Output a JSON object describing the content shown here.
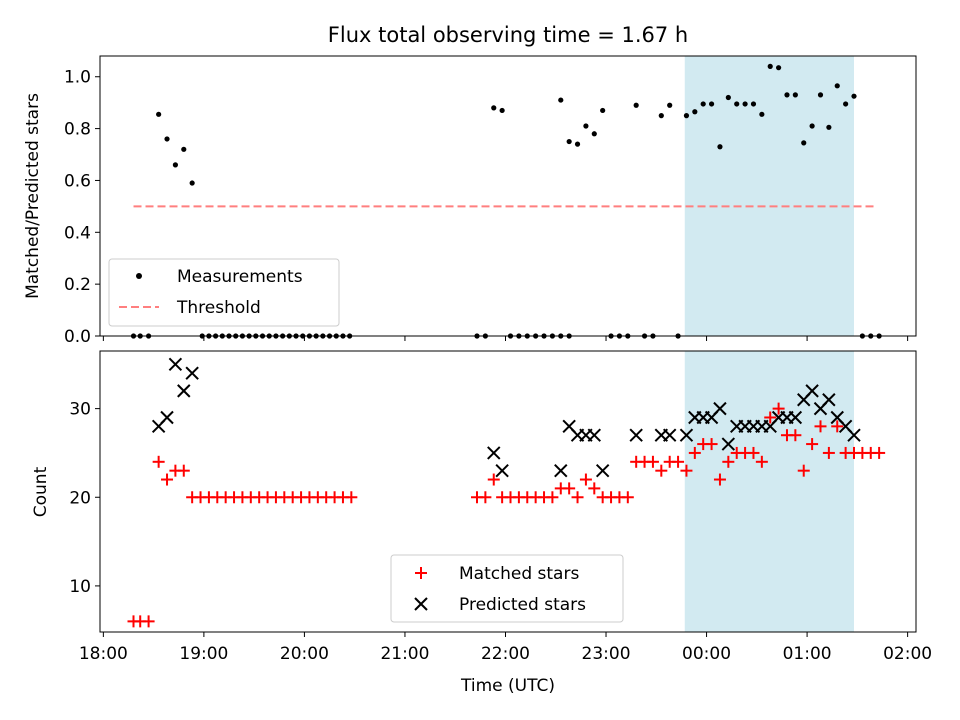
{
  "title": "Flux total observing time = 1.67 h",
  "colors": {
    "measurements": "#000000",
    "threshold": "#ff7f7f",
    "matched": "#ff0000",
    "predicted": "#000000",
    "window": "#add8e6"
  },
  "chart_data": [
    {
      "type": "scatter",
      "ylabel": "Matched/Predicted stars",
      "ylim": [
        0,
        1.08
      ],
      "yticks": [
        0.0,
        0.2,
        0.4,
        0.6,
        0.8,
        1.0
      ],
      "ytick_labels": [
        "0.0",
        "0.2",
        "0.4",
        "0.6",
        "0.8",
        "1.0"
      ],
      "xlim": [
        "17:58",
        "02:05"
      ],
      "shaded_window": [
        "23:47",
        "01:28"
      ],
      "legend": {
        "placement": "lower-left",
        "entries": [
          "Measurements",
          "Threshold"
        ]
      },
      "threshold": {
        "name": "Threshold",
        "y": 0.5,
        "x": [
          "18:18",
          "01:42"
        ],
        "style": "dashed"
      },
      "series": [
        {
          "name": "Measurements",
          "marker": "dot",
          "points": [
            [
              "18:18",
              0.0
            ],
            [
              "18:22",
              0.0
            ],
            [
              "18:27",
              0.0
            ],
            [
              "18:33",
              0.855
            ],
            [
              "18:38",
              0.76
            ],
            [
              "18:43",
              0.66
            ],
            [
              "18:48",
              0.72
            ],
            [
              "18:53",
              0.59
            ],
            [
              "18:59",
              0.0
            ],
            [
              "19:03",
              0.0
            ],
            [
              "19:07",
              0.0
            ],
            [
              "19:11",
              0.0
            ],
            [
              "19:15",
              0.0
            ],
            [
              "19:19",
              0.0
            ],
            [
              "19:23",
              0.0
            ],
            [
              "19:27",
              0.0
            ],
            [
              "19:31",
              0.0
            ],
            [
              "19:35",
              0.0
            ],
            [
              "19:39",
              0.0
            ],
            [
              "19:43",
              0.0
            ],
            [
              "19:47",
              0.0
            ],
            [
              "19:51",
              0.0
            ],
            [
              "19:55",
              0.0
            ],
            [
              "19:59",
              0.0
            ],
            [
              "20:03",
              0.0
            ],
            [
              "20:07",
              0.0
            ],
            [
              "20:11",
              0.0
            ],
            [
              "20:15",
              0.0
            ],
            [
              "20:19",
              0.0
            ],
            [
              "20:23",
              0.0
            ],
            [
              "20:27",
              0.0
            ],
            [
              "21:43",
              0.0
            ],
            [
              "21:48",
              0.0
            ],
            [
              "21:53",
              0.88
            ],
            [
              "21:58",
              0.87
            ],
            [
              "22:03",
              0.0
            ],
            [
              "22:08",
              0.0
            ],
            [
              "22:13",
              0.0
            ],
            [
              "22:18",
              0.0
            ],
            [
              "22:23",
              0.0
            ],
            [
              "22:28",
              0.0
            ],
            [
              "22:33",
              0.0
            ],
            [
              "22:38",
              0.0
            ],
            [
              "22:33",
              0.91
            ],
            [
              "22:38",
              0.75
            ],
            [
              "22:43",
              0.74
            ],
            [
              "22:48",
              0.81
            ],
            [
              "22:53",
              0.78
            ],
            [
              "22:58",
              0.87
            ],
            [
              "23:03",
              0.0
            ],
            [
              "23:08",
              0.0
            ],
            [
              "23:13",
              0.0
            ],
            [
              "23:18",
              0.89
            ],
            [
              "23:23",
              0.0
            ],
            [
              "23:28",
              0.0
            ],
            [
              "23:33",
              0.85
            ],
            [
              "23:38",
              0.89
            ],
            [
              "23:43",
              0.0
            ],
            [
              "23:48",
              0.85
            ],
            [
              "23:53",
              0.865
            ],
            [
              "23:58",
              0.895
            ],
            [
              "00:03",
              0.895
            ],
            [
              "00:08",
              0.73
            ],
            [
              "00:13",
              0.92
            ],
            [
              "00:18",
              0.895
            ],
            [
              "00:23",
              0.895
            ],
            [
              "00:28",
              0.895
            ],
            [
              "00:33",
              0.855
            ],
            [
              "00:38",
              1.04
            ],
            [
              "00:43",
              1.035
            ],
            [
              "00:48",
              0.93
            ],
            [
              "00:53",
              0.93
            ],
            [
              "00:58",
              0.745
            ],
            [
              "01:03",
              0.81
            ],
            [
              "01:08",
              0.93
            ],
            [
              "01:13",
              0.805
            ],
            [
              "01:18",
              0.965
            ],
            [
              "01:23",
              0.895
            ],
            [
              "01:28",
              0.925
            ],
            [
              "01:33",
              0.0
            ],
            [
              "01:38",
              0.0
            ],
            [
              "01:43",
              0.0
            ]
          ]
        }
      ]
    },
    {
      "type": "scatter",
      "ylabel": "Count",
      "xlabel": "Time (UTC)",
      "ylim": [
        4.8,
        36.5
      ],
      "yticks": [
        10,
        20,
        30
      ],
      "ytick_labels": [
        "10",
        "20",
        "30"
      ],
      "xlim": [
        "17:58",
        "02:05"
      ],
      "xticks": [
        "18:00",
        "19:00",
        "20:00",
        "21:00",
        "22:00",
        "23:00",
        "00:00",
        "01:00",
        "02:00"
      ],
      "xtick_labels": [
        "18:00",
        "19:00",
        "20:00",
        "21:00",
        "22:00",
        "23:00",
        "00:00",
        "01:00",
        "02:00"
      ],
      "shaded_window": [
        "23:47",
        "01:28"
      ],
      "legend": {
        "placement": "lower-center",
        "entries": [
          "Matched stars",
          "Predicted stars"
        ]
      },
      "series": [
        {
          "name": "Matched stars",
          "marker": "plus",
          "points": [
            [
              "18:18",
              6
            ],
            [
              "18:22",
              6
            ],
            [
              "18:27",
              6
            ],
            [
              "18:33",
              24
            ],
            [
              "18:38",
              22
            ],
            [
              "18:43",
              23
            ],
            [
              "18:48",
              23
            ],
            [
              "18:53",
              20
            ],
            [
              "18:58",
              20
            ],
            [
              "19:03",
              20
            ],
            [
              "19:08",
              20
            ],
            [
              "19:13",
              20
            ],
            [
              "19:18",
              20
            ],
            [
              "19:23",
              20
            ],
            [
              "19:28",
              20
            ],
            [
              "19:33",
              20
            ],
            [
              "19:38",
              20
            ],
            [
              "19:43",
              20
            ],
            [
              "19:48",
              20
            ],
            [
              "19:53",
              20
            ],
            [
              "19:58",
              20
            ],
            [
              "20:03",
              20
            ],
            [
              "20:08",
              20
            ],
            [
              "20:13",
              20
            ],
            [
              "20:18",
              20
            ],
            [
              "20:23",
              20
            ],
            [
              "20:28",
              20
            ],
            [
              "21:43",
              20
            ],
            [
              "21:48",
              20
            ],
            [
              "21:53",
              22
            ],
            [
              "21:58",
              20
            ],
            [
              "22:03",
              20
            ],
            [
              "22:08",
              20
            ],
            [
              "22:13",
              20
            ],
            [
              "22:18",
              20
            ],
            [
              "22:23",
              20
            ],
            [
              "22:28",
              20
            ],
            [
              "22:33",
              21
            ],
            [
              "22:38",
              21
            ],
            [
              "22:43",
              20
            ],
            [
              "22:48",
              22
            ],
            [
              "22:53",
              21
            ],
            [
              "22:58",
              20
            ],
            [
              "23:03",
              20
            ],
            [
              "23:08",
              20
            ],
            [
              "23:13",
              20
            ],
            [
              "23:18",
              24
            ],
            [
              "23:23",
              24
            ],
            [
              "23:28",
              24
            ],
            [
              "23:33",
              23
            ],
            [
              "23:38",
              24
            ],
            [
              "23:43",
              24
            ],
            [
              "23:48",
              23
            ],
            [
              "23:53",
              25
            ],
            [
              "23:58",
              26
            ],
            [
              "00:03",
              26
            ],
            [
              "00:08",
              22
            ],
            [
              "00:13",
              24
            ],
            [
              "00:18",
              25
            ],
            [
              "00:23",
              25
            ],
            [
              "00:28",
              25
            ],
            [
              "00:33",
              24
            ],
            [
              "00:38",
              29
            ],
            [
              "00:43",
              30
            ],
            [
              "00:48",
              27
            ],
            [
              "00:53",
              27
            ],
            [
              "00:58",
              23
            ],
            [
              "01:03",
              26
            ],
            [
              "01:08",
              28
            ],
            [
              "01:13",
              25
            ],
            [
              "01:18",
              28
            ],
            [
              "01:23",
              25
            ],
            [
              "01:28",
              25
            ],
            [
              "01:33",
              25
            ],
            [
              "01:38",
              25
            ],
            [
              "01:43",
              25
            ]
          ]
        },
        {
          "name": "Predicted stars",
          "marker": "x",
          "points": [
            [
              "18:33",
              28
            ],
            [
              "18:38",
              29
            ],
            [
              "18:43",
              35
            ],
            [
              "18:48",
              32
            ],
            [
              "18:53",
              34
            ],
            [
              "21:53",
              25
            ],
            [
              "21:58",
              23
            ],
            [
              "22:33",
              23
            ],
            [
              "22:38",
              28
            ],
            [
              "22:43",
              27
            ],
            [
              "22:48",
              27
            ],
            [
              "22:53",
              27
            ],
            [
              "22:58",
              23
            ],
            [
              "23:18",
              27
            ],
            [
              "23:33",
              27
            ],
            [
              "23:38",
              27
            ],
            [
              "23:48",
              27
            ],
            [
              "23:53",
              29
            ],
            [
              "23:58",
              29
            ],
            [
              "00:03",
              29
            ],
            [
              "00:08",
              30
            ],
            [
              "00:13",
              26
            ],
            [
              "00:18",
              28
            ],
            [
              "00:23",
              28
            ],
            [
              "00:28",
              28
            ],
            [
              "00:33",
              28
            ],
            [
              "00:38",
              28
            ],
            [
              "00:43",
              29
            ],
            [
              "00:48",
              29
            ],
            [
              "00:53",
              29
            ],
            [
              "00:58",
              31
            ],
            [
              "01:03",
              32
            ],
            [
              "01:08",
              30
            ],
            [
              "01:13",
              31
            ],
            [
              "01:18",
              29
            ],
            [
              "01:23",
              28
            ],
            [
              "01:28",
              27
            ]
          ]
        }
      ]
    }
  ]
}
